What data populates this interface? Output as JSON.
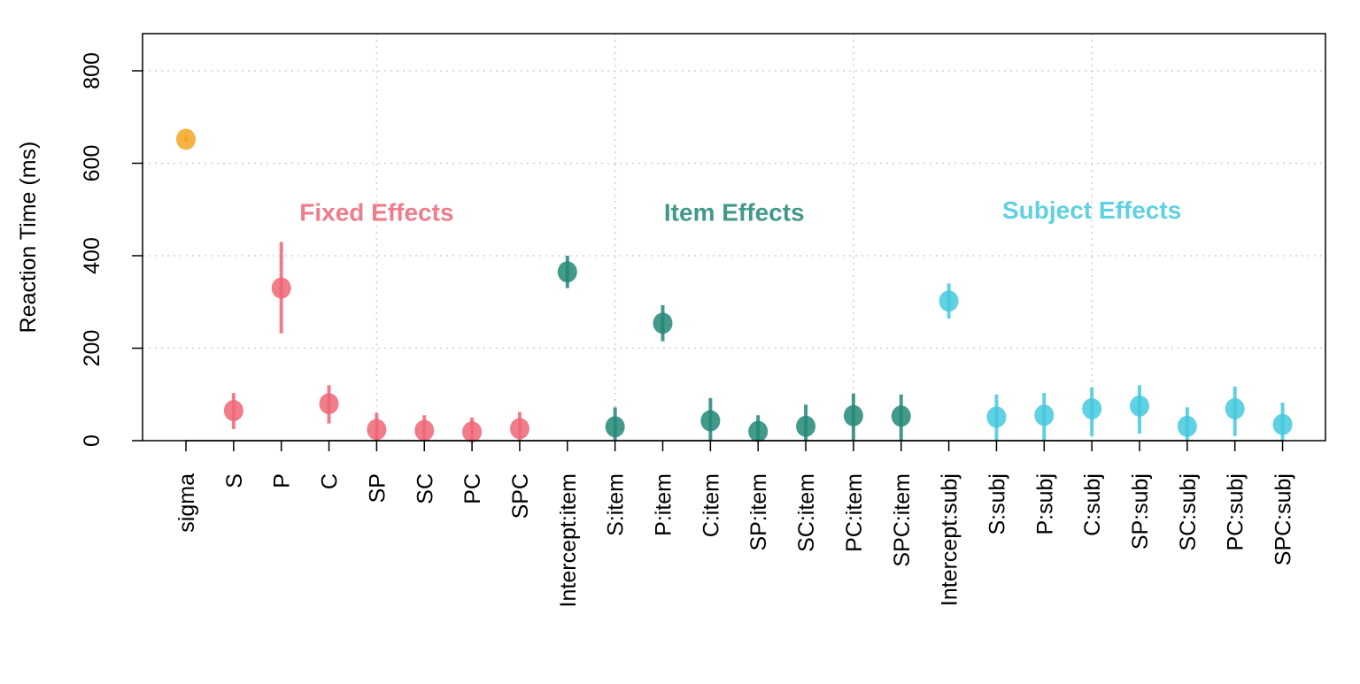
{
  "chart_data": {
    "type": "scatter",
    "title": "",
    "xlabel": "",
    "ylabel": "Reaction Time (ms)",
    "ylim": [
      0,
      880
    ],
    "yticks": [
      0,
      200,
      400,
      600,
      800
    ],
    "grid": true,
    "colors": {
      "sigma": "#F5A623",
      "fixed": "#EE6677",
      "item": "#228877",
      "subject": "#44C9DD"
    },
    "group_labels": [
      {
        "text": "Fixed Effects",
        "color_key": "fixed",
        "x_at": 4,
        "y": 495
      },
      {
        "text": "Item Effects",
        "color_key": "item",
        "x_at": 11.5,
        "y": 495
      },
      {
        "text": "Subject Effects",
        "color_key": "subject",
        "x_at": 19,
        "y": 500
      }
    ],
    "categories": [
      "sigma",
      "S",
      "P",
      "C",
      "SP",
      "SC",
      "PC",
      "SPC",
      "Intercept:item",
      "S:item",
      "P:item",
      "C:item",
      "SP:item",
      "SC:item",
      "PC:item",
      "SPC:item",
      "Intercept:subj",
      "S:subj",
      "P:subj",
      "C:subj",
      "SP:subj",
      "SC:subj",
      "PC:subj",
      "SPC:subj"
    ],
    "points": [
      {
        "label": "sigma",
        "group": "sigma",
        "y": 652,
        "lo": 645,
        "hi": 660
      },
      {
        "label": "S",
        "group": "fixed",
        "y": 65,
        "lo": 25,
        "hi": 103
      },
      {
        "label": "P",
        "group": "fixed",
        "y": 330,
        "lo": 232,
        "hi": 430
      },
      {
        "label": "C",
        "group": "fixed",
        "y": 80,
        "lo": 37,
        "hi": 120
      },
      {
        "label": "SP",
        "group": "fixed",
        "y": 24,
        "lo": 0,
        "hi": 60
      },
      {
        "label": "SC",
        "group": "fixed",
        "y": 22,
        "lo": 0,
        "hi": 55
      },
      {
        "label": "PC",
        "group": "fixed",
        "y": 19,
        "lo": 0,
        "hi": 50
      },
      {
        "label": "SPC",
        "group": "fixed",
        "y": 26,
        "lo": 0,
        "hi": 62
      },
      {
        "label": "Intercept:item",
        "group": "item",
        "y": 365,
        "lo": 330,
        "hi": 400
      },
      {
        "label": "S:item",
        "group": "item",
        "y": 30,
        "lo": 0,
        "hi": 72
      },
      {
        "label": "P:item",
        "group": "item",
        "y": 254,
        "lo": 215,
        "hi": 293
      },
      {
        "label": "C:item",
        "group": "item",
        "y": 43,
        "lo": 0,
        "hi": 92
      },
      {
        "label": "SP:item",
        "group": "item",
        "y": 20,
        "lo": 0,
        "hi": 55
      },
      {
        "label": "SC:item",
        "group": "item",
        "y": 31,
        "lo": 0,
        "hi": 78
      },
      {
        "label": "PC:item",
        "group": "item",
        "y": 54,
        "lo": 0,
        "hi": 102
      },
      {
        "label": "SPC:item",
        "group": "item",
        "y": 53,
        "lo": 0,
        "hi": 100
      },
      {
        "label": "Intercept:subj",
        "group": "subject",
        "y": 302,
        "lo": 264,
        "hi": 340
      },
      {
        "label": "S:subj",
        "group": "subject",
        "y": 51,
        "lo": 0,
        "hi": 100
      },
      {
        "label": "P:subj",
        "group": "subject",
        "y": 55,
        "lo": 0,
        "hi": 103
      },
      {
        "label": "C:subj",
        "group": "subject",
        "y": 69,
        "lo": 10,
        "hi": 115
      },
      {
        "label": "SP:subj",
        "group": "subject",
        "y": 75,
        "lo": 15,
        "hi": 120
      },
      {
        "label": "SC:subj",
        "group": "subject",
        "y": 31,
        "lo": 0,
        "hi": 72
      },
      {
        "label": "PC:subj",
        "group": "subject",
        "y": 69,
        "lo": 10,
        "hi": 117
      },
      {
        "label": "SPC:subj",
        "group": "subject",
        "y": 35,
        "lo": 0,
        "hi": 82
      }
    ]
  }
}
